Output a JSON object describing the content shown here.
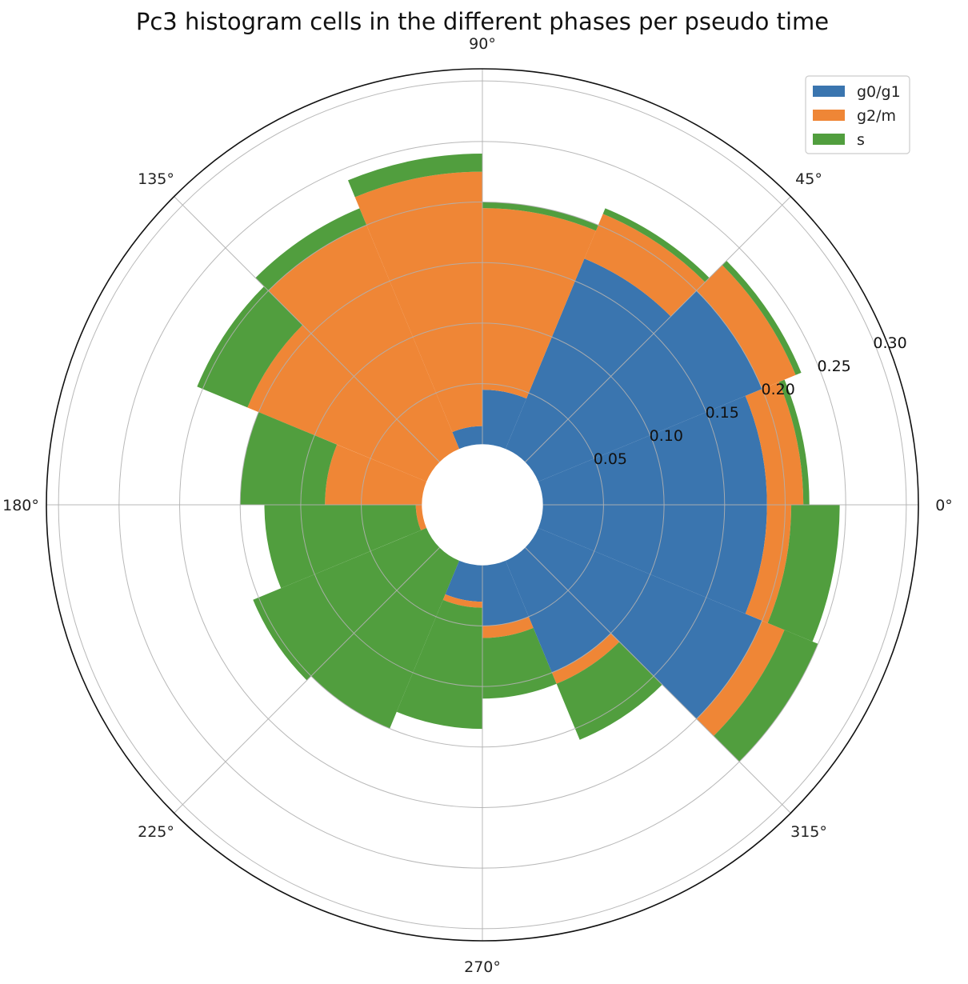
{
  "chart_data": {
    "type": "bar",
    "subtype": "polar-stacked-histogram",
    "title": "Pc3 histogram cells in the different phases per pseudo time",
    "theta_tick_labels": [
      "0°",
      "45°",
      "90°",
      "135°",
      "180°",
      "225°",
      "270°",
      "315°"
    ],
    "theta_ticks_deg": [
      0,
      45,
      90,
      135,
      180,
      225,
      270,
      315
    ],
    "r_tick_labels": [
      "0.05",
      "0.10",
      "0.15",
      "0.20",
      "0.25",
      "0.30"
    ],
    "r_ticks": [
      0.05,
      0.1,
      0.15,
      0.2,
      0.25,
      0.3
    ],
    "r_origin": -0.05,
    "rlim": [
      -0.05,
      0.31
    ],
    "r_label_angle_deg": 22.5,
    "grid": true,
    "legend_position": "top-right",
    "bin_width_deg": 22.5,
    "categories": [
      "0°–22.5°",
      "22.5°–45°",
      "45°–67.5°",
      "67.5°–90°",
      "90°–112.5°",
      "112.5°–135°",
      "135°–157.5°",
      "157.5°–180°",
      "180°–202.5°",
      "202.5°–225°",
      "225°–247.5°",
      "247.5°–270°",
      "270°–292.5°",
      "292.5°–315°",
      "315°–337.5°",
      "337.5°–360°"
    ],
    "bin_start_deg": [
      0,
      22.5,
      45,
      67.5,
      90,
      112.5,
      135,
      157.5,
      180,
      202.5,
      225,
      247.5,
      270,
      292.5,
      315,
      337.5
    ],
    "series": [
      {
        "name": "g0/g1",
        "color": "#3a75af",
        "values": [
          0.185,
          0.2,
          0.17,
          0.045,
          0.015,
          0.0,
          0.0,
          0.0,
          0.0,
          0.0,
          0.0,
          0.03,
          0.05,
          0.1,
          0.2,
          0.185
        ]
      },
      {
        "name": "g2/m",
        "color": "#ef8636",
        "values": [
          0.03,
          0.03,
          0.04,
          0.15,
          0.21,
          0.2,
          0.16,
          0.08,
          0.005,
          0.0,
          0.0,
          0.005,
          0.01,
          0.01,
          0.02,
          0.02
        ]
      },
      {
        "name": "s",
        "color": "#519e3e",
        "values": [
          0.005,
          0.005,
          0.005,
          0.005,
          0.015,
          0.015,
          0.045,
          0.07,
          0.125,
          0.155,
          0.15,
          0.1,
          0.05,
          0.05,
          0.03,
          0.04
        ]
      }
    ]
  }
}
